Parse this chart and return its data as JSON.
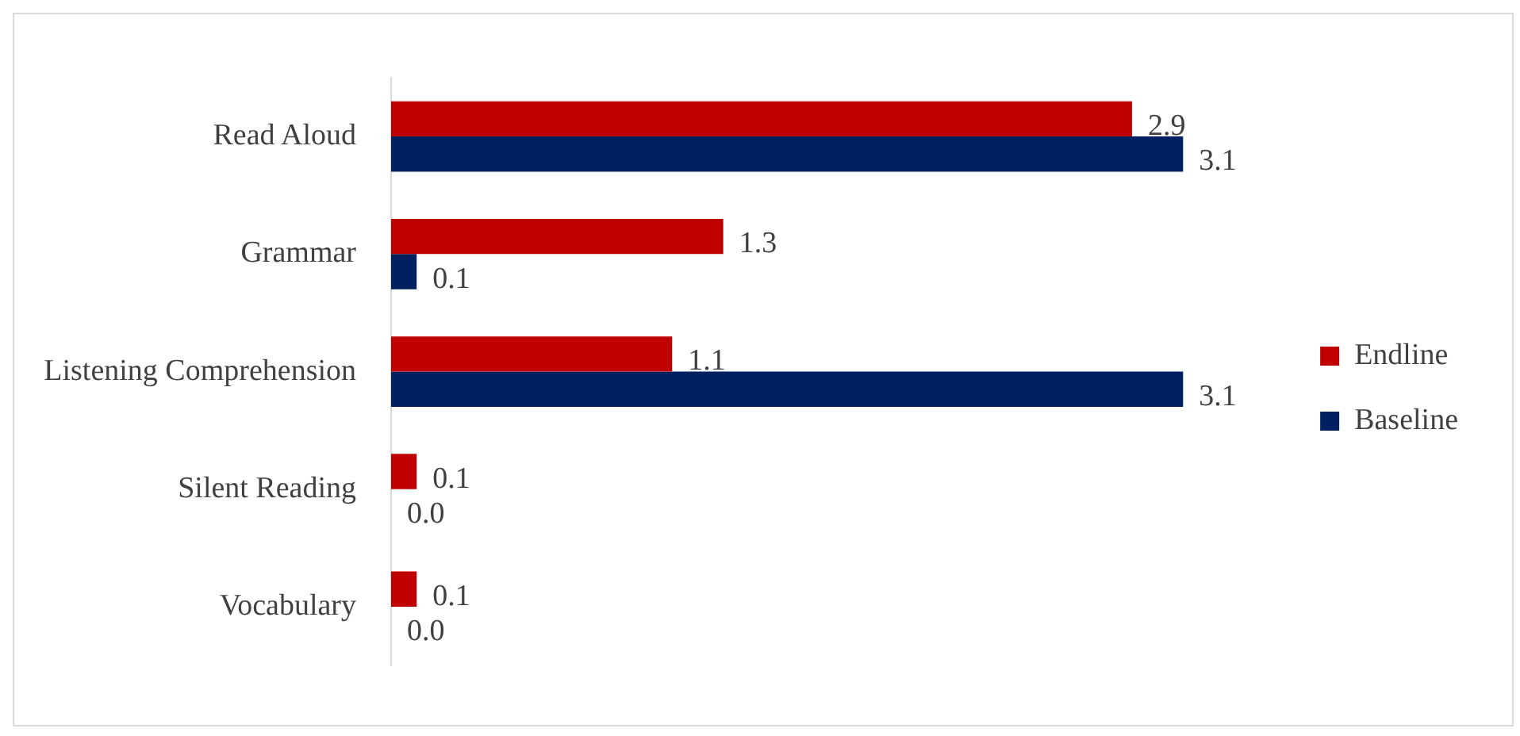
{
  "chart_data": {
    "type": "bar",
    "orientation": "horizontal",
    "categories": [
      "Read Aloud",
      "Grammar",
      "Listening Comprehension",
      "Silent Reading",
      "Vocabulary"
    ],
    "series": [
      {
        "name": "Endline",
        "color": "#c00000",
        "values": [
          2.9,
          1.3,
          1.1,
          0.1,
          0.1
        ],
        "value_labels": [
          "2.9",
          "1.3",
          "1.1",
          "0.1",
          "0.1"
        ]
      },
      {
        "name": "Baseline",
        "color": "#002060",
        "values": [
          3.1,
          0.1,
          3.1,
          0.0,
          0.0
        ],
        "value_labels": [
          "3.1",
          "0.1",
          "3.1",
          "0.0",
          "0.0"
        ]
      }
    ],
    "legend": "right",
    "grid": false
  }
}
